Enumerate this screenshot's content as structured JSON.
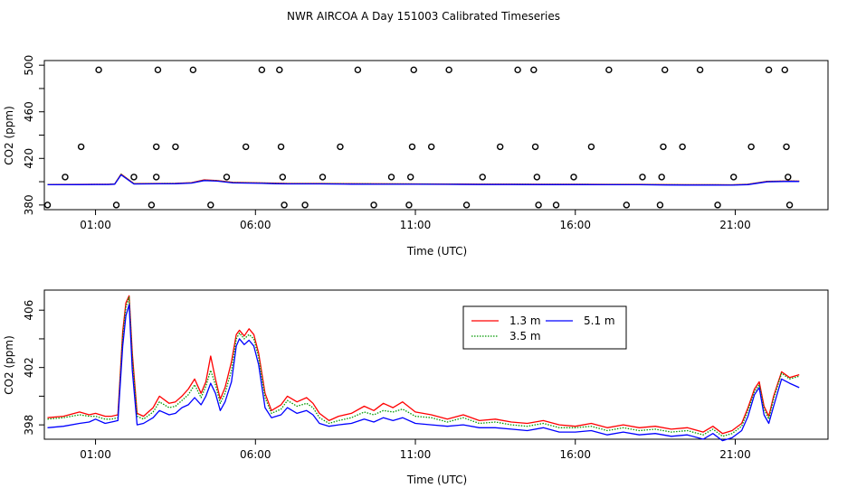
{
  "title": "NWR AIRCOA A  Day 151003  Calibrated Timeseries",
  "chart_data": [
    {
      "type": "scatter+line",
      "xlabel": "Time (UTC)",
      "ylabel": "CO2 (ppm)",
      "xlim": [
        -0.6,
        23.9
      ],
      "ylim": [
        376,
        504
      ],
      "xticks": [
        {
          "value": 1,
          "label": "01:00"
        },
        {
          "value": 6,
          "label": "06:00"
        },
        {
          "value": 11,
          "label": "11:00"
        },
        {
          "value": 16,
          "label": "16:00"
        },
        {
          "value": 21,
          "label": "21:00"
        }
      ],
      "yticks": [
        {
          "value": 380,
          "label": "380"
        },
        {
          "value": 420,
          "label": "420"
        },
        {
          "value": 460,
          "label": "460"
        },
        {
          "value": 500,
          "label": "500"
        }
      ],
      "yminor": [
        400,
        440,
        480
      ],
      "calibration_points": [
        [
          -0.5,
          380
        ],
        [
          0.05,
          404
        ],
        [
          0.55,
          430
        ],
        [
          1.1,
          496
        ],
        [
          1.65,
          380
        ],
        [
          2.2,
          404
        ],
        [
          2.75,
          380
        ],
        [
          2.9,
          404
        ],
        [
          2.9,
          430
        ],
        [
          2.95,
          496
        ],
        [
          3.5,
          430
        ],
        [
          4.05,
          496
        ],
        [
          4.6,
          380
        ],
        [
          5.1,
          404
        ],
        [
          5.7,
          430
        ],
        [
          6.2,
          496
        ],
        [
          6.75,
          496
        ],
        [
          6.8,
          430
        ],
        [
          6.85,
          404
        ],
        [
          6.9,
          380
        ],
        [
          7.55,
          380
        ],
        [
          8.1,
          404
        ],
        [
          8.65,
          430
        ],
        [
          9.2,
          496
        ],
        [
          9.7,
          380
        ],
        [
          10.25,
          404
        ],
        [
          10.8,
          380
        ],
        [
          10.85,
          404
        ],
        [
          10.9,
          430
        ],
        [
          10.95,
          496
        ],
        [
          11.5,
          430
        ],
        [
          12.05,
          496
        ],
        [
          12.6,
          380
        ],
        [
          13.1,
          404
        ],
        [
          13.65,
          430
        ],
        [
          14.2,
          496
        ],
        [
          14.7,
          496
        ],
        [
          14.75,
          430
        ],
        [
          14.8,
          404
        ],
        [
          14.85,
          380
        ],
        [
          15.4,
          380
        ],
        [
          15.95,
          404
        ],
        [
          16.5,
          430
        ],
        [
          17.05,
          496
        ],
        [
          17.6,
          380
        ],
        [
          18.1,
          404
        ],
        [
          18.65,
          380
        ],
        [
          18.7,
          404
        ],
        [
          18.75,
          430
        ],
        [
          18.8,
          496
        ],
        [
          19.35,
          430
        ],
        [
          19.9,
          496
        ],
        [
          20.45,
          380
        ],
        [
          20.95,
          404
        ],
        [
          21.5,
          430
        ],
        [
          22.05,
          496
        ],
        [
          22.55,
          496
        ],
        [
          22.6,
          430
        ],
        [
          22.65,
          404
        ],
        [
          22.7,
          380
        ]
      ],
      "series": [
        {
          "name": "1.3 m",
          "color": "#ff0000",
          "style": "solid",
          "x": [
            -0.5,
            0.5,
            1.0,
            1.4,
            1.6,
            1.8,
            2.2,
            3.0,
            3.5,
            4.0,
            4.4,
            4.8,
            5.3,
            6.2,
            6.6,
            7.0,
            8.0,
            9.0,
            10.0,
            11.0,
            12.0,
            13.0,
            14.0,
            15.0,
            16.0,
            17.0,
            18.0,
            18.8,
            19.5,
            20.3,
            20.9,
            21.4,
            22.0,
            22.7,
            23.0
          ],
          "values": [
            397.6,
            397.7,
            397.8,
            397.8,
            398.1,
            406.5,
            398.4,
            398.5,
            398.6,
            399.2,
            401.6,
            401.0,
            399.4,
            399.0,
            398.7,
            398.5,
            398.5,
            398.3,
            398.2,
            398.1,
            398.0,
            397.9,
            397.9,
            397.8,
            397.8,
            397.7,
            397.7,
            397.5,
            397.4,
            397.4,
            397.3,
            397.8,
            400.3,
            400.6,
            400.5
          ]
        },
        {
          "name": "3.5 m",
          "color": "#009900",
          "style": "dotted",
          "x": [
            -0.5,
            0.5,
            1.0,
            1.4,
            1.6,
            1.8,
            2.2,
            3.0,
            3.5,
            4.0,
            4.4,
            4.8,
            5.3,
            6.2,
            6.6,
            7.0,
            8.0,
            9.0,
            10.0,
            11.0,
            12.0,
            13.0,
            14.0,
            15.0,
            16.0,
            17.0,
            18.0,
            18.8,
            19.5,
            20.3,
            20.9,
            21.4,
            22.0,
            22.7,
            23.0
          ],
          "values": [
            397.5,
            397.6,
            397.7,
            397.7,
            398.0,
            406.3,
            398.3,
            398.4,
            398.5,
            399.0,
            401.3,
            400.8,
            399.3,
            398.9,
            398.6,
            398.4,
            398.4,
            398.2,
            398.1,
            398.0,
            397.9,
            397.8,
            397.8,
            397.7,
            397.7,
            397.6,
            397.6,
            397.4,
            397.3,
            397.3,
            397.2,
            397.7,
            400.2,
            400.5,
            400.4
          ]
        },
        {
          "name": "5.1 m",
          "color": "#0000ff",
          "style": "solid",
          "x": [
            -0.5,
            0.5,
            1.0,
            1.4,
            1.6,
            1.8,
            2.2,
            3.0,
            3.5,
            4.0,
            4.4,
            4.8,
            5.3,
            6.2,
            6.6,
            7.0,
            8.0,
            9.0,
            10.0,
            11.0,
            12.0,
            13.0,
            14.0,
            15.0,
            16.0,
            17.0,
            18.0,
            18.8,
            19.5,
            20.3,
            20.9,
            21.4,
            22.0,
            22.7,
            23.0
          ],
          "values": [
            397.4,
            397.5,
            397.6,
            397.6,
            397.9,
            405.9,
            398.0,
            398.2,
            398.3,
            398.8,
            401.0,
            400.5,
            399.0,
            398.6,
            398.3,
            398.1,
            398.1,
            397.9,
            397.8,
            397.8,
            397.7,
            397.6,
            397.6,
            397.5,
            397.5,
            397.4,
            397.4,
            397.2,
            397.1,
            397.1,
            397.0,
            397.5,
            399.9,
            400.3,
            400.2
          ]
        }
      ]
    },
    {
      "type": "line",
      "xlabel": "Time (UTC)",
      "ylabel": "CO2 (ppm)",
      "xlim": [
        -0.6,
        23.9
      ],
      "ylim": [
        397.0,
        407.4
      ],
      "xticks": [
        {
          "value": 1,
          "label": "01:00"
        },
        {
          "value": 6,
          "label": "06:00"
        },
        {
          "value": 11,
          "label": "11:00"
        },
        {
          "value": 16,
          "label": "16:00"
        },
        {
          "value": 21,
          "label": "21:00"
        }
      ],
      "yticks": [
        {
          "value": 398,
          "label": "398"
        },
        {
          "value": 402,
          "label": "402"
        },
        {
          "value": 406,
          "label": "406"
        }
      ],
      "yminor": [
        400,
        404
      ],
      "legend_position": "top-right",
      "series": [
        {
          "name": "1.3 m",
          "color": "#ff0000",
          "style": "solid",
          "x": [
            -0.5,
            0.0,
            0.5,
            0.8,
            1.0,
            1.3,
            1.5,
            1.7,
            1.85,
            1.95,
            2.05,
            2.15,
            2.3,
            2.5,
            2.8,
            3.0,
            3.3,
            3.5,
            3.7,
            3.9,
            4.1,
            4.3,
            4.45,
            4.6,
            4.75,
            4.9,
            5.05,
            5.25,
            5.4,
            5.5,
            5.65,
            5.8,
            5.95,
            6.1,
            6.3,
            6.5,
            6.8,
            7.0,
            7.3,
            7.6,
            7.8,
            8.0,
            8.3,
            8.6,
            9.0,
            9.4,
            9.7,
            10.0,
            10.3,
            10.6,
            11.0,
            11.5,
            12.0,
            12.5,
            13.0,
            13.5,
            14.0,
            14.5,
            15.0,
            15.5,
            16.0,
            16.5,
            17.0,
            17.5,
            18.0,
            18.5,
            19.0,
            19.5,
            20.0,
            20.3,
            20.6,
            20.9,
            21.2,
            21.4,
            21.6,
            21.75,
            21.9,
            22.05,
            22.2,
            22.45,
            22.7,
            23.0
          ],
          "values": [
            398.5,
            398.6,
            398.9,
            398.7,
            398.8,
            398.6,
            398.6,
            398.7,
            404.5,
            406.5,
            407.0,
            403.0,
            398.8,
            398.6,
            399.2,
            400.0,
            399.5,
            399.6,
            400.0,
            400.5,
            401.2,
            400.2,
            401.0,
            402.8,
            401.2,
            399.8,
            400.6,
            402.4,
            404.3,
            404.6,
            404.2,
            404.7,
            404.3,
            403.0,
            400.2,
            399.0,
            399.4,
            400.0,
            399.6,
            399.9,
            399.5,
            398.8,
            398.3,
            398.6,
            398.8,
            399.3,
            399.0,
            399.5,
            399.2,
            399.6,
            398.9,
            398.7,
            398.4,
            398.7,
            398.3,
            398.4,
            398.2,
            398.1,
            398.3,
            398.0,
            397.9,
            398.1,
            397.8,
            398.0,
            397.8,
            397.9,
            397.7,
            397.8,
            397.5,
            397.9,
            397.4,
            397.6,
            398.1,
            399.2,
            400.5,
            401.0,
            399.3,
            398.6,
            400.0,
            401.7,
            401.3,
            401.5
          ]
        },
        {
          "name": "3.5 m",
          "color": "#009900",
          "style": "dotted",
          "x": [
            -0.5,
            0.0,
            0.5,
            0.8,
            1.0,
            1.3,
            1.5,
            1.7,
            1.85,
            1.95,
            2.05,
            2.15,
            2.3,
            2.5,
            2.8,
            3.0,
            3.3,
            3.5,
            3.7,
            3.9,
            4.1,
            4.3,
            4.45,
            4.6,
            4.75,
            4.9,
            5.05,
            5.25,
            5.4,
            5.5,
            5.65,
            5.8,
            5.95,
            6.1,
            6.3,
            6.5,
            6.8,
            7.0,
            7.3,
            7.6,
            7.8,
            8.0,
            8.3,
            8.6,
            9.0,
            9.4,
            9.7,
            10.0,
            10.3,
            10.6,
            11.0,
            11.5,
            12.0,
            12.5,
            13.0,
            13.5,
            14.0,
            14.5,
            15.0,
            15.5,
            16.0,
            16.5,
            17.0,
            17.5,
            18.0,
            18.5,
            19.0,
            19.5,
            20.0,
            20.3,
            20.6,
            20.9,
            21.2,
            21.4,
            21.6,
            21.75,
            21.9,
            22.05,
            22.2,
            22.45,
            22.7,
            23.0
          ],
          "values": [
            398.4,
            398.5,
            398.7,
            398.6,
            398.6,
            398.4,
            398.4,
            398.5,
            404.2,
            406.2,
            406.9,
            402.7,
            398.6,
            398.4,
            398.9,
            399.6,
            399.2,
            399.3,
            399.7,
            400.1,
            400.8,
            399.9,
            400.7,
            401.8,
            400.8,
            399.5,
            400.2,
            401.8,
            404.0,
            404.4,
            404.0,
            404.3,
            404.0,
            402.7,
            399.9,
            398.8,
            399.1,
            399.7,
            399.3,
            399.5,
            399.2,
            398.5,
            398.1,
            398.3,
            398.5,
            398.9,
            398.7,
            399.0,
            398.9,
            399.1,
            398.6,
            398.5,
            398.2,
            398.5,
            398.1,
            398.2,
            398.0,
            397.9,
            398.1,
            397.8,
            397.8,
            397.9,
            397.6,
            397.8,
            397.6,
            397.7,
            397.5,
            397.6,
            397.3,
            397.7,
            397.2,
            397.4,
            397.9,
            399.0,
            400.3,
            400.8,
            399.1,
            398.4,
            399.8,
            401.6,
            401.2,
            401.4
          ]
        },
        {
          "name": "5.1 m",
          "color": "#0000ff",
          "style": "solid",
          "x": [
            -0.5,
            0.0,
            0.5,
            0.8,
            1.0,
            1.3,
            1.5,
            1.7,
            1.85,
            1.95,
            2.05,
            2.15,
            2.3,
            2.5,
            2.8,
            3.0,
            3.3,
            3.5,
            3.7,
            3.9,
            4.1,
            4.3,
            4.45,
            4.6,
            4.75,
            4.9,
            5.05,
            5.25,
            5.4,
            5.5,
            5.65,
            5.8,
            5.95,
            6.1,
            6.3,
            6.5,
            6.8,
            7.0,
            7.3,
            7.6,
            7.8,
            8.0,
            8.3,
            8.6,
            9.0,
            9.4,
            9.7,
            10.0,
            10.3,
            10.6,
            11.0,
            11.5,
            12.0,
            12.5,
            13.0,
            13.5,
            14.0,
            14.5,
            15.0,
            15.5,
            16.0,
            16.5,
            17.0,
            17.5,
            18.0,
            18.5,
            19.0,
            19.5,
            20.0,
            20.3,
            20.6,
            20.9,
            21.2,
            21.4,
            21.6,
            21.75,
            21.9,
            22.05,
            22.2,
            22.45,
            22.7,
            23.0
          ],
          "values": [
            397.8,
            397.9,
            398.1,
            398.2,
            398.4,
            398.1,
            398.2,
            398.3,
            403.5,
            405.6,
            406.4,
            401.8,
            398.0,
            398.1,
            398.5,
            399.0,
            398.7,
            398.8,
            399.2,
            399.4,
            399.9,
            399.4,
            400.0,
            400.9,
            400.2,
            399.0,
            399.6,
            401.0,
            403.5,
            404.0,
            403.6,
            403.9,
            403.5,
            402.2,
            399.2,
            398.5,
            398.7,
            399.2,
            398.8,
            399.0,
            398.7,
            398.1,
            397.9,
            398.0,
            398.1,
            398.4,
            398.2,
            398.5,
            398.3,
            398.5,
            398.1,
            398.0,
            397.9,
            398.0,
            397.8,
            397.8,
            397.7,
            397.6,
            397.8,
            397.5,
            397.5,
            397.6,
            397.3,
            397.5,
            397.3,
            397.4,
            397.2,
            397.3,
            397.0,
            397.4,
            396.9,
            397.1,
            397.6,
            398.6,
            400.1,
            400.6,
            398.7,
            398.1,
            399.3,
            401.2,
            400.9,
            400.6
          ]
        }
      ]
    }
  ]
}
